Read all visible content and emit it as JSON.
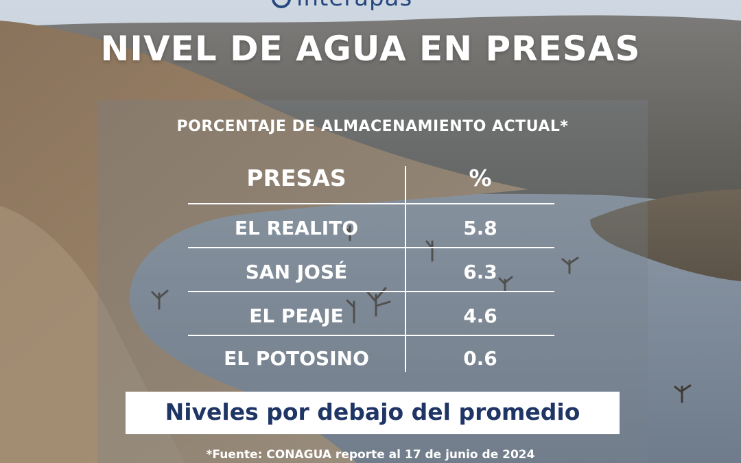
{
  "brand": {
    "logo_text": "interapas"
  },
  "headline": "NIVEL DE AGUA EN PRESAS",
  "subtitle": "PORCENTAJE DE ALMACENAMIENTO ACTUAL*",
  "table": {
    "headers": {
      "name": "PRESAS",
      "value": "%"
    },
    "rows": [
      {
        "name": "EL REALITO",
        "value": "5.8"
      },
      {
        "name": "SAN JOSÉ",
        "value": "6.3"
      },
      {
        "name": "EL PEAJE",
        "value": "4.6"
      },
      {
        "name": "EL POTOSINO",
        "value": "0.6"
      }
    ]
  },
  "banner": "Niveles por debajo del promedio",
  "source": "*Fuente: CONAGUA reporte al 17 de junio de 2024",
  "colors": {
    "brand_blue": "#27487f",
    "banner_text": "#1f3566",
    "banner_bg": "#ffffff"
  }
}
